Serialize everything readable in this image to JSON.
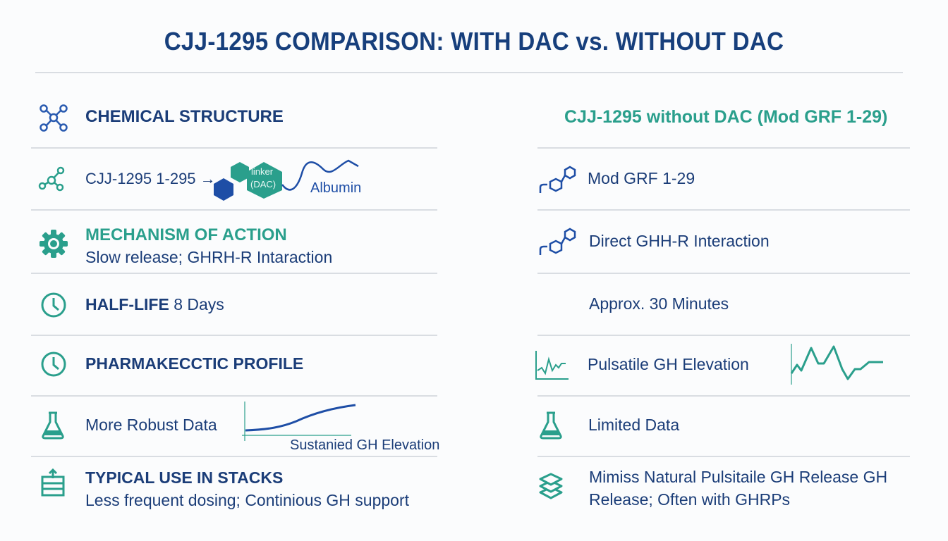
{
  "title": "CJJ-1295 COMPARISON: WITH DAC vs. WITHOUT DAC",
  "colors": {
    "navy": "#173f7c",
    "teal": "#2a9f8c",
    "divider": "#d9dde2"
  },
  "left": {
    "header": {
      "icon": "molecule-icon",
      "label": "CHEMICAL STRUCTURE"
    },
    "structure": {
      "icon": "molecule-icon",
      "text": "CJJ-1295 1-295 →",
      "linker_label": "linker",
      "linker_sub": "(DAC)",
      "albumin": "Albumin"
    },
    "mechanism": {
      "icon": "gear-icon",
      "label": "MECHANISM OF ACTION",
      "text": "Slow release; GHRH-R Intaraction"
    },
    "half_life": {
      "icon": "clock-icon",
      "label": "HALF-LIFE",
      "value": "8 Days"
    },
    "profile": {
      "icon": "clock-icon",
      "label": "PHARMAKECCTIC PROFILE"
    },
    "data": {
      "icon": "flask-icon",
      "text": "More Robust Data",
      "chart_label": "Sustanied GH Elevation"
    },
    "stacks": {
      "icon": "stack-box-icon",
      "label": "TYPICAL USE IN STACKS",
      "text": "Less frequent dosing; Continious GH support"
    }
  },
  "right": {
    "header": "CJJ-1295 without DAC (Mod GRF 1-29)",
    "structure": {
      "icon": "peptide-chain-icon",
      "text": "Mod GRF 1-29"
    },
    "mechanism": {
      "icon": "peptide-chain-icon",
      "text": "Direct GHH-R Interaction"
    },
    "half_life": {
      "text": "Approx. 30 Minutes"
    },
    "profile": {
      "icon": "pulse-chart-icon",
      "text": "Pulsatile GH Elevation"
    },
    "data": {
      "icon": "flask-icon",
      "text": "Limited Data"
    },
    "stacks": {
      "icon": "layers-icon",
      "line1": "Mimiss Natural Pulsitaile GH Release GH",
      "line2": "Release; Often with GHRPs"
    }
  }
}
